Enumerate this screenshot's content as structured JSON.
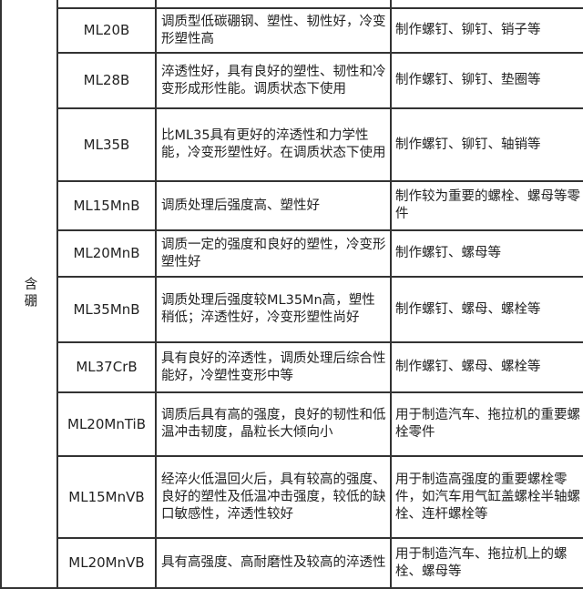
{
  "group_label": "含硼",
  "rows": [
    {
      "grade": "",
      "properties": "",
      "uses": ""
    },
    {
      "grade": "ML20B",
      "properties": "调质型低碳硼钢、塑性、韧性好，冷变形塑性高",
      "uses": "制作螺钉、铆钉、销子等"
    },
    {
      "grade": "ML28B",
      "properties": "淬透性好，具有良好的塑性、韧性和冷变形成形性能。调质状态下使用",
      "uses": "制作螺钉、铆钉、垫圈等"
    },
    {
      "grade": "ML35B",
      "properties": "比ML35具有更好的淬透性和力学性能，冷变形塑性好。在调质状态下使用",
      "uses": "制作螺钉、铆钉、轴销等"
    },
    {
      "grade": "ML15MnB",
      "properties": "调质处理后强度高、塑性好",
      "uses": "制作较为重要的螺栓、螺母等零件"
    },
    {
      "grade": "ML20MnB",
      "properties": "调质一定的强度和良好的塑性，冷变形塑性好",
      "uses": "制作螺钉、螺母等"
    },
    {
      "grade": "ML35MnB",
      "properties": "调质处理后强度较ML35Mn高，塑性稍低；淬透性好，冷变形塑性尚好",
      "uses": "制作螺钉、螺母、螺栓等"
    },
    {
      "grade": "ML37CrB",
      "properties": "具有良好的淬透性，调质处理后综合性能好，冷塑性变形中等",
      "uses": "制作螺钉、螺母、螺栓等"
    },
    {
      "grade": "ML20MnTiB",
      "properties": "调质后具有高的强度，良好的韧性和低温冲击韧度，晶粒长大倾向小",
      "uses": "用于制造汽车、拖拉机的重要螺栓零件"
    },
    {
      "grade": "ML15MnVB",
      "properties": "经淬火低温回火后，具有较高的强度、良好的塑性及低温冲击强度，较低的缺口敏感性，淬透性较好",
      "uses": "用于制造高强度的重要螺栓零件，如汽车用气缸盖螺栓半轴螺栓、连杆螺栓等"
    },
    {
      "grade": "ML20MnVB",
      "properties": "具有高强度、高耐磨性及较高的淬透性",
      "uses": "用于制造汽车、拖拉机上的螺栓、螺母等"
    }
  ]
}
